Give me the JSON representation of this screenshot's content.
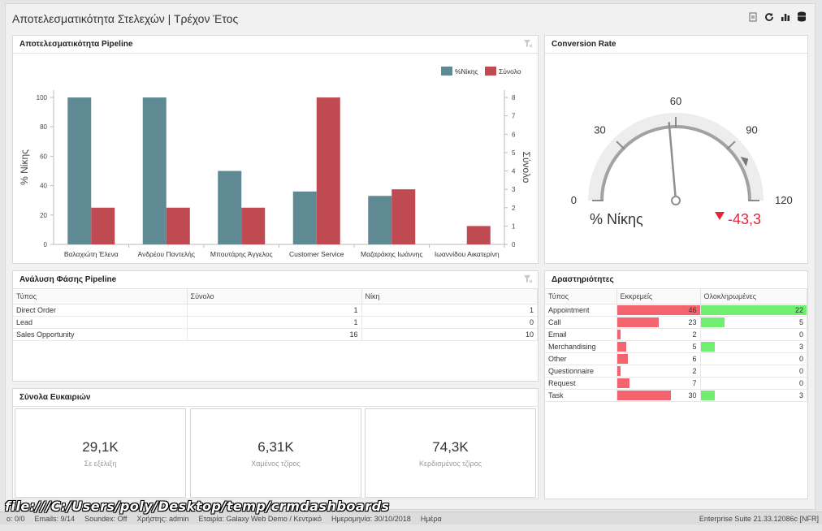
{
  "page": {
    "title": "Αποτελεσματικότητα Στελεχών | Τρέχον Έτος",
    "toolbar_icons": [
      "export-icon",
      "refresh-icon",
      "chart-icon",
      "database-icon"
    ]
  },
  "pipeline_panel": {
    "title": "Αποτελεσματικότητα Pipeline",
    "legend": {
      "win": "%Νίκης",
      "total": "Σύνολο"
    },
    "colors": {
      "win": "#5f8a94",
      "total": "#bf4a52"
    }
  },
  "chart_data": {
    "type": "bar",
    "categories": [
      "Βαλαχιώτη Έλενα",
      "Ανδρέου Παντελής",
      "Μπουτάρης Άγγελος",
      "Customer Service",
      "Μαζαράκης Ιωάννης",
      "Ιωαννίδου Αικατερίνη"
    ],
    "series": [
      {
        "name": "%Νίκης",
        "axis": "left",
        "values": [
          100,
          100,
          50,
          36,
          33,
          0
        ]
      },
      {
        "name": "Σύνολο",
        "axis": "right",
        "values": [
          2,
          2,
          2,
          8,
          3,
          1
        ]
      }
    ],
    "ylabel": "% Νίκης",
    "ylabel_right": "Σύνολο",
    "ylim": [
      0,
      105
    ],
    "ylim_right": [
      0,
      8.4
    ],
    "yticks": [
      0,
      20,
      40,
      60,
      80,
      100
    ],
    "yticks_right": [
      0,
      1,
      2,
      3,
      4,
      5,
      6,
      7,
      8
    ],
    "legend_position": "top-right",
    "grid": false
  },
  "conversion_panel": {
    "title": "Conversion Rate",
    "gauge": {
      "min": 0,
      "max": 120,
      "value": 56.7,
      "target": 100,
      "ticks": [
        "0",
        "30",
        "60",
        "90",
        "120"
      ],
      "label": "% Νίκης",
      "delta": "-43,3",
      "delta_color": "#e8243a"
    }
  },
  "phase_panel": {
    "title": "Ανάλυση Φάσης Pipeline",
    "columns": [
      "Τύπος",
      "Σύνολο",
      "Νίκη"
    ],
    "rows": [
      {
        "type": "Direct Order",
        "total": "1",
        "win": "1"
      },
      {
        "type": "Lead",
        "total": "1",
        "win": "0"
      },
      {
        "type": "Sales Opportunity",
        "total": "16",
        "win": "10"
      }
    ]
  },
  "totals_panel": {
    "title": "Σύνολα Ευκαιριών",
    "cards": [
      {
        "value": "29,1K",
        "label": "Σε εξέλιξη"
      },
      {
        "value": "6,31K",
        "label": "Χαμένος τζίρος"
      },
      {
        "value": "74,3K",
        "label": "Κερδισμένος τζίρος"
      }
    ]
  },
  "activities_panel": {
    "title": "Δραστηριότητες",
    "columns": [
      "Τύπος",
      "Εκκρεμείς",
      "Ολοκληρωμένες"
    ],
    "colors": {
      "pending": "#f4646e",
      "completed": "#6fee6f"
    },
    "rows": [
      {
        "type": "Appointment",
        "pending": "46",
        "completed": "22",
        "pending_frac": 1.0,
        "completed_frac": 1.0
      },
      {
        "type": "Call",
        "pending": "23",
        "completed": "5",
        "pending_frac": 0.5,
        "completed_frac": 0.227
      },
      {
        "type": "Email",
        "pending": "2",
        "completed": "0",
        "pending_frac": 0.043,
        "completed_frac": 0
      },
      {
        "type": "Merchandising",
        "pending": "5",
        "completed": "3",
        "pending_frac": 0.109,
        "completed_frac": 0.136
      },
      {
        "type": "Other",
        "pending": "6",
        "completed": "0",
        "pending_frac": 0.13,
        "completed_frac": 0
      },
      {
        "type": "Questionnaire",
        "pending": "2",
        "completed": "0",
        "pending_frac": 0.043,
        "completed_frac": 0
      },
      {
        "type": "Request",
        "pending": "7",
        "completed": "0",
        "pending_frac": 0.152,
        "completed_frac": 0
      },
      {
        "type": "Task",
        "pending": "30",
        "completed": "3",
        "pending_frac": 0.652,
        "completed_frac": 0.136
      }
    ]
  },
  "statusbar": {
    "items": [
      "o: 0/0",
      "Emails: 9/14",
      "Soundex: Off",
      "Χρήστης: admin",
      "Εταιρία: Galaxy Web Demo / Κεντρικό",
      "Ημερομηνία: 30/10/2018",
      "Ημέρα"
    ],
    "right": "Enterprise Suite  21.33.12086c [NFR]"
  },
  "url_overlay": "file:///C:/Users/poly/Desktop/temp/crmdashboards"
}
